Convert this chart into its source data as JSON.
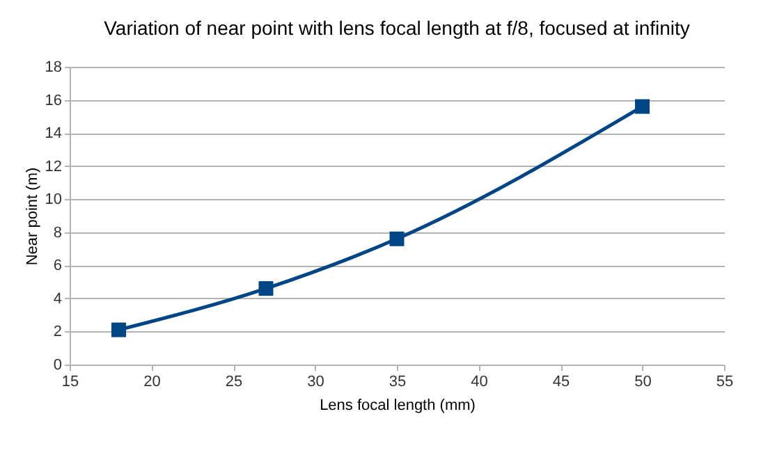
{
  "chart_data": {
    "type": "line",
    "title": "Variation of near point with lens focal length at f/8, focused at infinity",
    "xlabel": "Lens focal length (mm)",
    "ylabel": "Near point (m)",
    "x": [
      18,
      27,
      35,
      50
    ],
    "series": [
      {
        "color": "#004586",
        "values": [
          2.1,
          4.6,
          7.6,
          15.6
        ]
      }
    ],
    "xlim": [
      15,
      55
    ],
    "xticks": [
      15,
      20,
      25,
      30,
      35,
      40,
      45,
      50,
      55
    ],
    "ylim": [
      0,
      18
    ],
    "yticks": [
      0,
      2,
      4,
      6,
      8,
      10,
      12,
      14,
      16,
      18
    ],
    "grid": "y",
    "marker": "square",
    "line_style": "solid"
  }
}
